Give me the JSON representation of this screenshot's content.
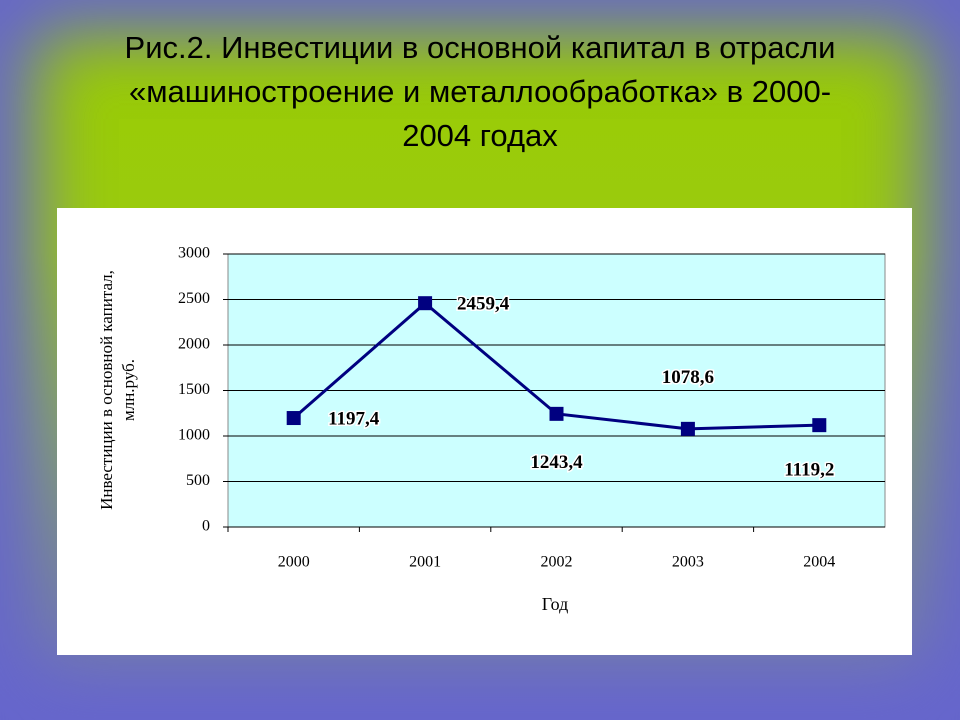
{
  "chart_data": {
    "type": "line",
    "title": "Рис.2. Инвестиции в основной капитал в отрасли «машиностроение и металлообработка» в 2000-2004 годах",
    "xlabel": "Год",
    "ylabel": "Инвестиции в основной капитал, млн.руб.",
    "categories": [
      "2000",
      "2001",
      "2002",
      "2003",
      "2004"
    ],
    "series": [
      {
        "color": "#000080",
        "values": [
          1197.4,
          2459.4,
          1243.4,
          1078.6,
          1119.2
        ],
        "value_labels": [
          "1197,4",
          "2459,4",
          "1243,4",
          "1078,6",
          "1119,2"
        ]
      }
    ],
    "ylim": [
      0,
      3000
    ],
    "yticks": [
      0,
      500,
      1000,
      1500,
      2000,
      2500,
      3000
    ],
    "grid": true
  }
}
